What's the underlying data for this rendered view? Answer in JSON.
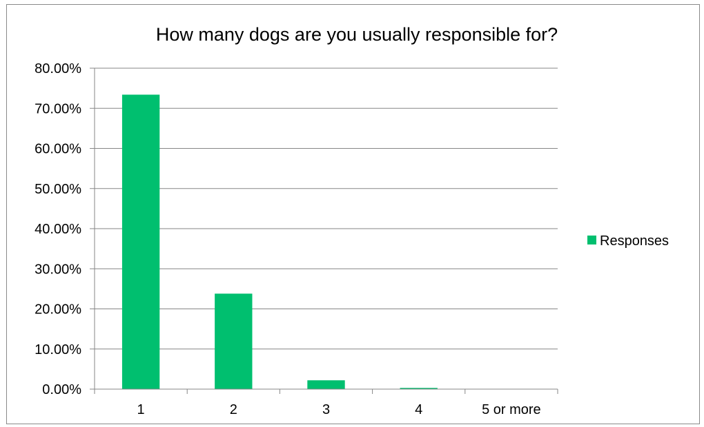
{
  "chart_data": {
    "type": "bar",
    "title": "How many dogs are you usually responsible for?",
    "categories": [
      "1",
      "2",
      "3",
      "4",
      "5 or more"
    ],
    "series": [
      {
        "name": "Responses",
        "color": "#00BF6F",
        "values": [
          73.4,
          23.8,
          2.2,
          0.3,
          0.0
        ]
      }
    ],
    "ylim": [
      0,
      80
    ],
    "y_ticks": [
      "0.00%",
      "10.00%",
      "20.00%",
      "30.00%",
      "40.00%",
      "50.00%",
      "60.00%",
      "70.00%",
      "80.00%"
    ],
    "y_tick_values": [
      0,
      10,
      20,
      30,
      40,
      50,
      60,
      70,
      80
    ],
    "xlabel": "",
    "ylabel": "",
    "grid": true,
    "legend_position": "right",
    "gridline_color": "#868686"
  }
}
